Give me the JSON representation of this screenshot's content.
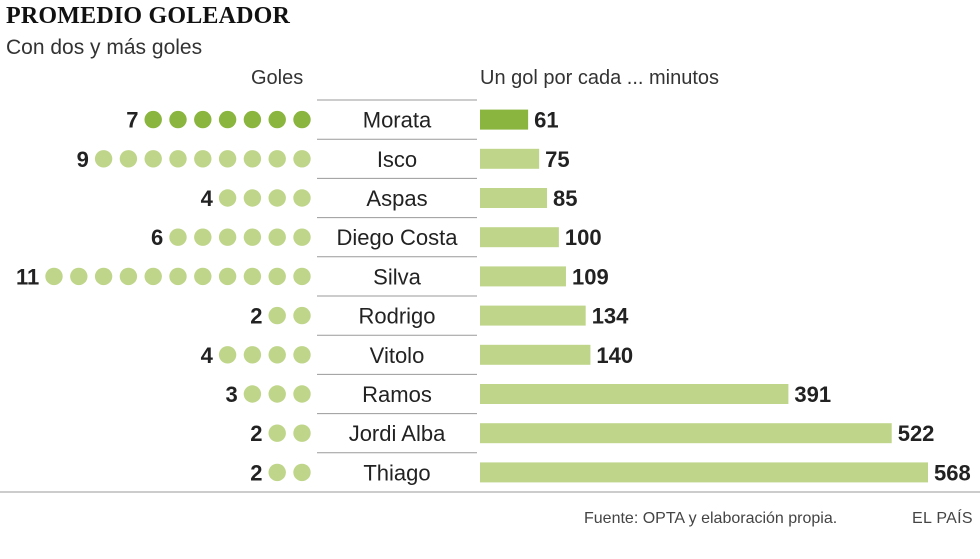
{
  "header": {
    "title": "PROMEDIO GOLEADOR",
    "subtitle": "Con dos y más goles",
    "goals_column": "Goles",
    "minutes_column": "Un gol por cada ... minutos"
  },
  "footer": {
    "source": "Fuente: OPTA y elaboración propia.",
    "brand": "EL PAÍS"
  },
  "colors": {
    "highlight": "#8ab53e",
    "normal": "#bfd68a",
    "divider": "#9a9a9a"
  },
  "chart_data": {
    "type": "bar",
    "orientation": "horizontal",
    "categories": [
      "Morata",
      "Isco",
      "Aspas",
      "Diego Costa",
      "Silva",
      "Rodrigo",
      "Vitolo",
      "Ramos",
      "Jordi Alba",
      "Thiago"
    ],
    "goals": [
      7,
      9,
      4,
      6,
      11,
      2,
      4,
      3,
      2,
      2
    ],
    "values": [
      61,
      75,
      85,
      100,
      109,
      134,
      140,
      391,
      522,
      568
    ],
    "highlight_index": 0
  }
}
